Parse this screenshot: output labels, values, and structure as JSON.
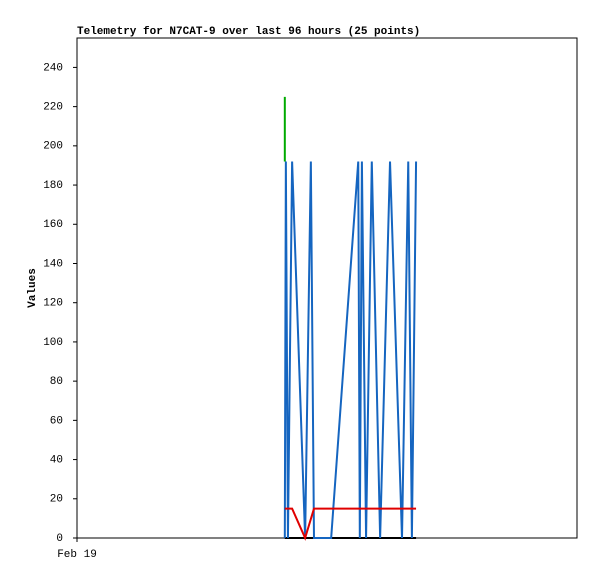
{
  "chart_data": {
    "type": "line",
    "title": "Telemetry for N7CAT-9 over last 96 hours (25 points)",
    "y_label": "Values",
    "xlim": [
      0,
      96
    ],
    "xticks": [
      {
        "value": 0,
        "label": "Feb 19"
      }
    ],
    "ylim": [
      0,
      255
    ],
    "yticks": [
      0,
      20,
      40,
      60,
      80,
      100,
      120,
      140,
      160,
      180,
      200,
      220,
      240
    ],
    "series": [
      {
        "color": "#000000",
        "x": [
          39.9,
          65.1
        ],
        "values": [
          0,
          0
        ]
      },
      {
        "color": "#1565c0",
        "x": [
          39.9,
          40.1,
          40.5,
          41.3,
          43.8,
          44.9,
          45.5,
          48.8,
          54.0,
          54.3,
          54.7,
          55.5,
          56.6,
          58.2,
          60.1,
          62.4,
          63.6,
          64.3,
          65.1
        ],
        "values": [
          0,
          192,
          0,
          192,
          0,
          192,
          0,
          0,
          192,
          0,
          192,
          0,
          192,
          0,
          192,
          0,
          192,
          0,
          192
        ]
      },
      {
        "color": "#00aa00",
        "x": [
          39.9,
          39.9
        ],
        "values": [
          192,
          225
        ]
      },
      {
        "color": "#e00000",
        "x": [
          39.9,
          41.3,
          43.8,
          45.5,
          65.1
        ],
        "values": [
          15,
          15,
          0,
          15,
          15
        ]
      }
    ]
  }
}
